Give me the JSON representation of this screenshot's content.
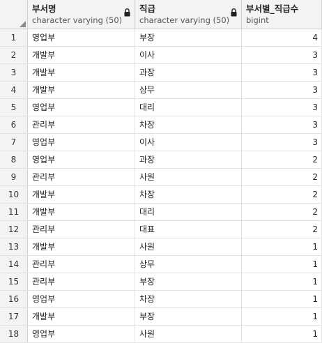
{
  "columns": [
    {
      "name": "부서명",
      "type": "character varying (50)"
    },
    {
      "name": "직급",
      "type": "character varying (50)"
    },
    {
      "name": "부서별_직급수",
      "type": "bigint"
    }
  ],
  "rows": [
    {
      "n": "1",
      "dept": "영업부",
      "rank": "부장",
      "count": "4"
    },
    {
      "n": "2",
      "dept": "개발부",
      "rank": "이사",
      "count": "3"
    },
    {
      "n": "3",
      "dept": "개발부",
      "rank": "과장",
      "count": "3"
    },
    {
      "n": "4",
      "dept": "개발부",
      "rank": "상무",
      "count": "3"
    },
    {
      "n": "5",
      "dept": "영업부",
      "rank": "대리",
      "count": "3"
    },
    {
      "n": "6",
      "dept": "관리부",
      "rank": "차장",
      "count": "3"
    },
    {
      "n": "7",
      "dept": "영업부",
      "rank": "이사",
      "count": "3"
    },
    {
      "n": "8",
      "dept": "영업부",
      "rank": "과장",
      "count": "2"
    },
    {
      "n": "9",
      "dept": "관리부",
      "rank": "사원",
      "count": "2"
    },
    {
      "n": "10",
      "dept": "개발부",
      "rank": "차장",
      "count": "2"
    },
    {
      "n": "11",
      "dept": "개발부",
      "rank": "대리",
      "count": "2"
    },
    {
      "n": "12",
      "dept": "관리부",
      "rank": "대표",
      "count": "2"
    },
    {
      "n": "13",
      "dept": "개발부",
      "rank": "사원",
      "count": "1"
    },
    {
      "n": "14",
      "dept": "관리부",
      "rank": "상무",
      "count": "1"
    },
    {
      "n": "15",
      "dept": "관리부",
      "rank": "부장",
      "count": "1"
    },
    {
      "n": "16",
      "dept": "영업부",
      "rank": "차장",
      "count": "1"
    },
    {
      "n": "17",
      "dept": "개발부",
      "rank": "부장",
      "count": "1"
    },
    {
      "n": "18",
      "dept": "영업부",
      "rank": "사원",
      "count": "1"
    }
  ],
  "icons": {
    "lock": "lock-icon",
    "corner": "select-all-corner"
  }
}
